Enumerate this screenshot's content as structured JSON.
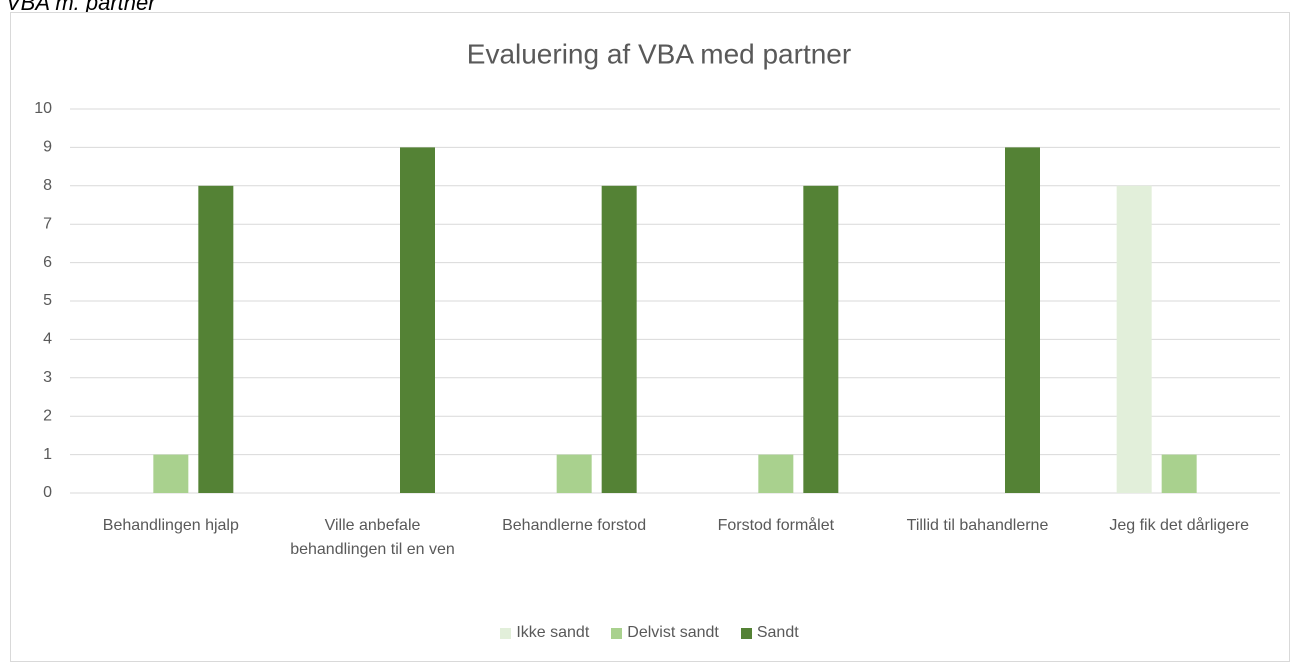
{
  "caption": "VBA m. partner",
  "chart_data": {
    "type": "bar",
    "title": "Evaluering af VBA med partner",
    "categories": [
      "Behandlingen hjalp",
      "Ville anbefale behandlingen til en ven",
      "Behandlerne forstod",
      "Forstod formålet",
      "Tillid til bahandlerne",
      "Jeg fik det dårligere"
    ],
    "series": [
      {
        "name": "Ikke sandt",
        "color": "#e2efda",
        "values": [
          0,
          0,
          0,
          0,
          0,
          8
        ]
      },
      {
        "name": "Delvist sandt",
        "color": "#a9d18e",
        "values": [
          1,
          0,
          1,
          1,
          0,
          1
        ]
      },
      {
        "name": "Sandt",
        "color": "#548235",
        "values": [
          8,
          9,
          8,
          8,
          9,
          0
        ]
      }
    ],
    "ylim": [
      0,
      10
    ],
    "yticks": [
      0,
      1,
      2,
      3,
      4,
      5,
      6,
      7,
      8,
      9,
      10
    ],
    "grid": true,
    "legend": "bottom"
  }
}
